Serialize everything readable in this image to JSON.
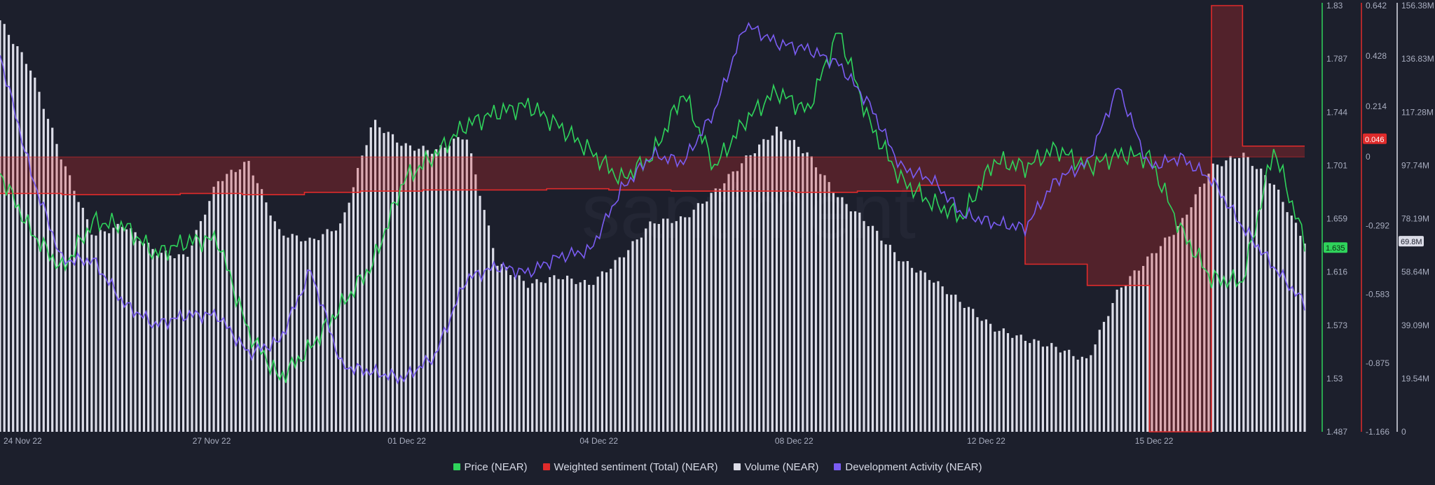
{
  "chart_data": {
    "type": "line",
    "watermark": "santiment",
    "x_axis": {
      "tick_labels": [
        "24 Nov 22",
        "27 Nov 22",
        "01 Dec 22",
        "04 Dec 22",
        "08 Dec 22",
        "12 Dec 22",
        "15 Dec 22"
      ],
      "range": [
        "24 Nov 22",
        "15 Dec 22"
      ]
    },
    "axes": {
      "price": {
        "ticks": [
          "1.83",
          "1.787",
          "1.744",
          "1.701",
          "1.659",
          "1.616",
          "1.573",
          "1.53",
          "1.487"
        ],
        "range": [
          1.487,
          1.83
        ],
        "color": "#2fd35b",
        "current_value_label": "1.635"
      },
      "sentiment": {
        "ticks": [
          "0.642",
          "0.428",
          "0.214",
          "0",
          "-0.292",
          "-0.583",
          "-0.875",
          "-1.166"
        ],
        "range": [
          -1.166,
          0.642
        ],
        "color": "#e02b2b",
        "current_value_label": "0.046"
      },
      "volume": {
        "ticks": [
          "156.38M",
          "136.83M",
          "117.28M",
          "97.74M",
          "78.19M",
          "58.64M",
          "39.09M",
          "19.54M",
          "0"
        ],
        "range": [
          0,
          156.38
        ],
        "unit": "M",
        "color": "#dcdde8",
        "current_value_label": "69.8M"
      }
    },
    "series": [
      {
        "name": "Price (NEAR)",
        "color": "#2fd35b",
        "axis": "price",
        "x": [
          0,
          0.5,
          1,
          1.5,
          2,
          2.5,
          3,
          3.5,
          4,
          4.5,
          5,
          5.5,
          6,
          6.5,
          7,
          7.5,
          8,
          8.5,
          9,
          9.5,
          10,
          10.5,
          11,
          11.5,
          12,
          12.5,
          13,
          13.5,
          14,
          14.5,
          15,
          15.5,
          16,
          16.5,
          17,
          17.5,
          18,
          18.5,
          19,
          19.5,
          20,
          20.5,
          21
        ],
        "values": [
          1.695,
          1.648,
          1.618,
          1.656,
          1.653,
          1.63,
          1.64,
          1.642,
          1.567,
          1.53,
          1.555,
          1.589,
          1.622,
          1.69,
          1.71,
          1.734,
          1.744,
          1.75,
          1.733,
          1.713,
          1.69,
          1.709,
          1.76,
          1.7,
          1.738,
          1.761,
          1.745,
          1.81,
          1.735,
          1.69,
          1.671,
          1.66,
          1.705,
          1.7,
          1.715,
          1.7,
          1.71,
          1.708,
          1.65,
          1.61,
          1.608,
          1.715,
          1.64
        ],
        "last_value": 1.635
      },
      {
        "name": "Weighted sentiment (Total) (NEAR)",
        "color": "#e02b2b",
        "axis": "sentiment",
        "x": [
          0,
          1,
          1.9,
          2.9,
          3.9,
          4.9,
          5.8,
          6.8,
          7.8,
          8.8,
          9.8,
          10.8,
          11.8,
          12.8,
          13.8,
          14.8,
          15.6,
          16.5,
          17.5,
          18.5,
          19.5,
          20.0,
          21
        ],
        "values": [
          -0.155,
          -0.16,
          -0.16,
          -0.155,
          -0.16,
          -0.15,
          -0.145,
          -0.14,
          -0.14,
          -0.135,
          -0.14,
          -0.145,
          -0.145,
          -0.15,
          -0.145,
          -0.12,
          -0.12,
          -0.455,
          -0.545,
          -1.166,
          0.642,
          0.046,
          0.046
        ],
        "last_value": 0.046
      },
      {
        "name": "Volume (NEAR)",
        "color": "#dcdde8",
        "axis": "volume",
        "unit": "M",
        "x": [
          0,
          0.5,
          1,
          1.5,
          2,
          2.5,
          3,
          3.5,
          4,
          4.5,
          5,
          5.5,
          6,
          6.5,
          7,
          7.5,
          8,
          8.5,
          9,
          9.5,
          10,
          10.5,
          11,
          11.5,
          12,
          12.5,
          13,
          13.5,
          14,
          14.5,
          15,
          15.5,
          16,
          16.5,
          17,
          17.5,
          18,
          18.5,
          19,
          19.5,
          20,
          20.5,
          21
        ],
        "values": [
          151,
          133,
          100,
          72,
          76,
          66,
          64,
          92,
          99,
          73,
          70,
          76,
          114,
          105,
          103,
          109,
          62,
          54,
          57,
          54,
          64,
          77,
          78,
          88,
          100,
          111,
          102,
          86,
          76,
          63,
          56,
          47,
          38,
          34,
          31,
          26,
          52,
          64,
          76,
          97,
          102,
          91,
          69.8
        ],
        "last_value": 69.8
      },
      {
        "name": "Development Activity (NEAR)",
        "color": "#7a5cf2",
        "axis": "price",
        "x": [
          0,
          0.5,
          1,
          1.5,
          2,
          2.5,
          3,
          3.5,
          4,
          4.5,
          5,
          5.5,
          6,
          6.5,
          7,
          7.5,
          8,
          8.5,
          9,
          9.5,
          10,
          10.5,
          11,
          11.5,
          12,
          12.5,
          13,
          13.5,
          14,
          14.5,
          15,
          15.5,
          16,
          16.5,
          17,
          17.5,
          18,
          18.5,
          19,
          19.5,
          20,
          20.5,
          21
        ],
        "values": [
          1.79,
          1.695,
          1.625,
          1.625,
          1.59,
          1.573,
          1.581,
          1.581,
          1.55,
          1.56,
          1.617,
          1.54,
          1.535,
          1.53,
          1.548,
          1.61,
          1.62,
          1.615,
          1.628,
          1.633,
          1.682,
          1.71,
          1.704,
          1.745,
          1.815,
          1.8,
          1.795,
          1.783,
          1.75,
          1.7,
          1.69,
          1.662,
          1.655,
          1.651,
          1.69,
          1.703,
          1.765,
          1.7,
          1.708,
          1.69,
          1.652,
          1.62,
          1.59
        ],
        "last_value": null
      }
    ]
  },
  "legend": [
    {
      "label": "Price (NEAR)",
      "color": "#2fd35b",
      "icon": "square-swatch"
    },
    {
      "label": "Weighted sentiment (Total) (NEAR)",
      "color": "#e02b2b",
      "icon": "square-swatch"
    },
    {
      "label": "Volume (NEAR)",
      "color": "#dcdde8",
      "icon": "square-swatch"
    },
    {
      "label": "Development Activity (NEAR)",
      "color": "#7a5cf2",
      "icon": "square-swatch"
    }
  ]
}
